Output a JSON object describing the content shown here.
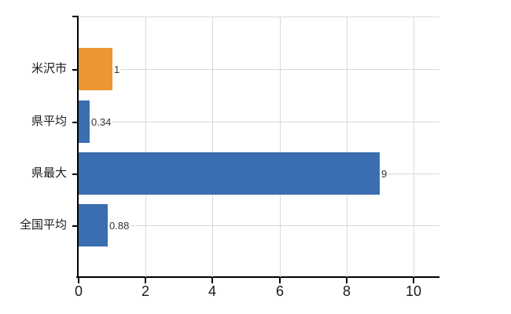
{
  "chart_data": {
    "type": "bar",
    "orientation": "horizontal",
    "title": "",
    "xlabel": "",
    "ylabel": "",
    "categories": [
      "米沢市",
      "県平均",
      "県最大",
      "全国平均"
    ],
    "values": [
      1,
      0.34,
      9,
      0.88
    ],
    "value_labels": [
      "1",
      "0.34",
      "9",
      "0.88"
    ],
    "bar_colors": [
      "#EC9533",
      "#3B6EB0",
      "#3B6EB0",
      "#3B6EB0"
    ],
    "x_ticks": [
      "0",
      "2",
      "4",
      "6",
      "8",
      "10"
    ],
    "x_tick_values": [
      0,
      2,
      4,
      6,
      8,
      10
    ],
    "xlim": [
      0,
      10.8
    ],
    "grid": true,
    "legend": false
  },
  "colors": {
    "background": "#FFFFFF",
    "axis": "#000000",
    "gridline": "#D9D9D9",
    "category_label": "#1A1A1A",
    "value_label": "#333333",
    "bar_orange": "#EC9533",
    "bar_blue": "#3B6EB0"
  }
}
